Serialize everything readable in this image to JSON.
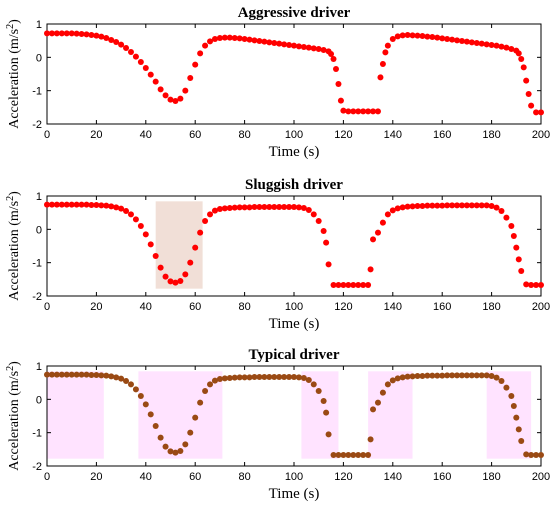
{
  "chart_data": [
    {
      "type": "scatter",
      "title": "Aggressive driver",
      "xlabel": "Time (s)",
      "ylabel": "Acceleration (m/s",
      "ylabel_sup": "2",
      "ylabel_close": ")",
      "xlim": [
        0,
        200
      ],
      "ylim": [
        -2,
        1
      ],
      "xticks": [
        "0",
        "20",
        "40",
        "60",
        "80",
        "100",
        "120",
        "140",
        "160",
        "180",
        "200"
      ],
      "yticks": [
        "1",
        "0",
        "-1",
        "-2"
      ],
      "grid": false,
      "marker_color": "#ff0000",
      "shade_color": "#ff0000",
      "x": [
        0,
        2,
        4,
        6,
        8,
        10,
        12,
        14,
        16,
        18,
        20,
        22,
        24,
        26,
        28,
        30,
        32,
        34,
        36,
        38,
        40,
        42,
        44,
        46,
        48,
        50,
        52,
        54,
        56,
        58,
        60,
        62,
        64,
        66,
        68,
        70,
        72,
        74,
        76,
        78,
        80,
        82,
        84,
        86,
        88,
        90,
        92,
        94,
        96,
        98,
        100,
        102,
        104,
        106,
        108,
        110,
        112,
        114,
        115,
        116,
        117,
        118,
        119,
        120,
        122,
        124,
        126,
        128,
        130,
        132,
        134,
        135,
        136,
        137,
        138,
        140,
        142,
        144,
        146,
        148,
        150,
        152,
        154,
        156,
        158,
        160,
        162,
        164,
        166,
        168,
        170,
        172,
        174,
        176,
        178,
        180,
        182,
        184,
        186,
        188,
        190,
        191,
        192,
        193,
        194,
        195,
        196,
        198,
        200
      ],
      "y": [
        0.72,
        0.72,
        0.72,
        0.72,
        0.72,
        0.72,
        0.71,
        0.7,
        0.69,
        0.67,
        0.65,
        0.62,
        0.58,
        0.52,
        0.46,
        0.38,
        0.28,
        0.16,
        0.02,
        -0.14,
        -0.32,
        -0.52,
        -0.73,
        -0.96,
        -1.14,
        -1.27,
        -1.31,
        -1.24,
        -1.0,
        -0.62,
        -0.22,
        0.12,
        0.35,
        0.48,
        0.55,
        0.58,
        0.59,
        0.59,
        0.58,
        0.57,
        0.55,
        0.53,
        0.51,
        0.49,
        0.47,
        0.45,
        0.43,
        0.41,
        0.39,
        0.37,
        0.35,
        0.33,
        0.31,
        0.29,
        0.27,
        0.25,
        0.22,
        0.18,
        0.1,
        -0.05,
        -0.35,
        -0.8,
        -1.3,
        -1.6,
        -1.62,
        -1.62,
        -1.62,
        -1.62,
        -1.62,
        -1.62,
        -1.62,
        -0.6,
        -0.2,
        0.15,
        0.35,
        0.55,
        0.63,
        0.66,
        0.67,
        0.66,
        0.65,
        0.64,
        0.62,
        0.61,
        0.59,
        0.57,
        0.55,
        0.53,
        0.51,
        0.49,
        0.47,
        0.45,
        0.43,
        0.41,
        0.39,
        0.37,
        0.35,
        0.32,
        0.29,
        0.25,
        0.2,
        0.12,
        -0.05,
        -0.3,
        -0.7,
        -1.1,
        -1.45,
        -1.65,
        -1.65
      ],
      "shaded_ranges": []
    },
    {
      "type": "scatter",
      "title": "Sluggish driver",
      "xlabel": "Time (s)",
      "ylabel": "Acceleration (m/s",
      "ylabel_sup": "2",
      "ylabel_close": ")",
      "xlim": [
        0,
        200
      ],
      "ylim": [
        -2,
        1
      ],
      "xticks": [
        "0",
        "20",
        "40",
        "60",
        "80",
        "100",
        "120",
        "140",
        "160",
        "180",
        "200"
      ],
      "yticks": [
        "1",
        "0",
        "-1",
        "-2"
      ],
      "grid": false,
      "marker_color": "#ff0000",
      "shade_color": "#b05020",
      "x": [
        0,
        2,
        4,
        6,
        8,
        10,
        12,
        14,
        16,
        18,
        20,
        22,
        24,
        26,
        28,
        30,
        32,
        34,
        36,
        38,
        40,
        42,
        44,
        46,
        48,
        50,
        52,
        54,
        56,
        58,
        60,
        62,
        64,
        66,
        68,
        70,
        72,
        74,
        76,
        78,
        80,
        82,
        84,
        86,
        88,
        90,
        92,
        94,
        96,
        98,
        100,
        102,
        104,
        106,
        108,
        110,
        112,
        113,
        114,
        116,
        118,
        120,
        122,
        124,
        126,
        128,
        130,
        131,
        132,
        134,
        136,
        138,
        140,
        142,
        144,
        146,
        148,
        150,
        152,
        154,
        156,
        158,
        160,
        162,
        164,
        166,
        168,
        170,
        172,
        174,
        176,
        178,
        180,
        182,
        184,
        186,
        188,
        189,
        190,
        191,
        192,
        194,
        196,
        198,
        200
      ],
      "y": [
        0.74,
        0.74,
        0.74,
        0.74,
        0.74,
        0.74,
        0.74,
        0.74,
        0.74,
        0.73,
        0.73,
        0.72,
        0.71,
        0.69,
        0.66,
        0.62,
        0.55,
        0.45,
        0.3,
        0.1,
        -0.15,
        -0.45,
        -0.8,
        -1.15,
        -1.42,
        -1.56,
        -1.6,
        -1.55,
        -1.35,
        -1.0,
        -0.55,
        -0.1,
        0.25,
        0.45,
        0.56,
        0.61,
        0.63,
        0.64,
        0.65,
        0.66,
        0.66,
        0.66,
        0.67,
        0.67,
        0.67,
        0.67,
        0.67,
        0.67,
        0.67,
        0.67,
        0.67,
        0.66,
        0.64,
        0.58,
        0.45,
        0.25,
        -0.05,
        -0.4,
        -1.05,
        -1.67,
        -1.67,
        -1.67,
        -1.67,
        -1.67,
        -1.67,
        -1.67,
        -1.67,
        -1.2,
        -0.3,
        -0.1,
        0.2,
        0.45,
        0.57,
        0.63,
        0.66,
        0.68,
        0.69,
        0.7,
        0.7,
        0.71,
        0.71,
        0.71,
        0.71,
        0.72,
        0.72,
        0.72,
        0.72,
        0.72,
        0.72,
        0.72,
        0.72,
        0.72,
        0.7,
        0.65,
        0.55,
        0.35,
        0.1,
        -0.2,
        -0.55,
        -0.9,
        -1.25,
        -1.65,
        -1.67,
        -1.67,
        -1.67
      ],
      "shaded_ranges": [
        [
          44,
          63
        ]
      ]
    },
    {
      "type": "scatter",
      "title": "Typical driver",
      "xlabel": "Time (s)",
      "ylabel": "Acceleration (m/s",
      "ylabel_sup": "2",
      "ylabel_close": ")",
      "xlim": [
        0,
        200
      ],
      "ylim": [
        -2,
        1
      ],
      "xticks": [
        "0",
        "20",
        "40",
        "60",
        "80",
        "100",
        "120",
        "140",
        "160",
        "180",
        "200"
      ],
      "yticks": [
        "1",
        "0",
        "-1",
        "-2"
      ],
      "grid": false,
      "marker_color": "#9a4a14",
      "shade_color": "#ff66ff",
      "x": [
        0,
        2,
        4,
        6,
        8,
        10,
        12,
        14,
        16,
        18,
        20,
        22,
        24,
        26,
        28,
        30,
        32,
        34,
        36,
        38,
        40,
        42,
        44,
        46,
        48,
        50,
        52,
        54,
        56,
        58,
        60,
        62,
        64,
        66,
        68,
        70,
        72,
        74,
        76,
        78,
        80,
        82,
        84,
        86,
        88,
        90,
        92,
        94,
        96,
        98,
        100,
        102,
        104,
        106,
        108,
        110,
        112,
        113,
        114,
        116,
        118,
        120,
        122,
        124,
        126,
        128,
        130,
        131,
        132,
        134,
        136,
        138,
        140,
        142,
        144,
        146,
        148,
        150,
        152,
        154,
        156,
        158,
        160,
        162,
        164,
        166,
        168,
        170,
        172,
        174,
        176,
        178,
        180,
        182,
        184,
        186,
        188,
        189,
        190,
        191,
        192,
        194,
        196,
        198,
        200
      ],
      "y": [
        0.74,
        0.74,
        0.74,
        0.74,
        0.74,
        0.74,
        0.74,
        0.74,
        0.74,
        0.73,
        0.73,
        0.72,
        0.71,
        0.69,
        0.66,
        0.62,
        0.55,
        0.45,
        0.3,
        0.1,
        -0.15,
        -0.45,
        -0.8,
        -1.15,
        -1.42,
        -1.56,
        -1.6,
        -1.55,
        -1.35,
        -1.0,
        -0.55,
        -0.1,
        0.25,
        0.45,
        0.56,
        0.61,
        0.63,
        0.64,
        0.65,
        0.66,
        0.66,
        0.66,
        0.67,
        0.67,
        0.67,
        0.67,
        0.67,
        0.67,
        0.67,
        0.67,
        0.67,
        0.66,
        0.64,
        0.58,
        0.45,
        0.25,
        -0.05,
        -0.4,
        -1.05,
        -1.67,
        -1.67,
        -1.67,
        -1.67,
        -1.67,
        -1.67,
        -1.67,
        -1.67,
        -1.2,
        -0.3,
        -0.1,
        0.2,
        0.45,
        0.57,
        0.63,
        0.66,
        0.68,
        0.69,
        0.7,
        0.7,
        0.71,
        0.71,
        0.71,
        0.71,
        0.72,
        0.72,
        0.72,
        0.72,
        0.72,
        0.72,
        0.72,
        0.72,
        0.72,
        0.7,
        0.65,
        0.55,
        0.35,
        0.1,
        -0.2,
        -0.55,
        -0.9,
        -1.25,
        -1.65,
        -1.67,
        -1.67,
        -1.67
      ],
      "shaded_ranges": [
        [
          0,
          23
        ],
        [
          37,
          71
        ],
        [
          103,
          118
        ],
        [
          130,
          148
        ],
        [
          178,
          196
        ]
      ]
    }
  ]
}
